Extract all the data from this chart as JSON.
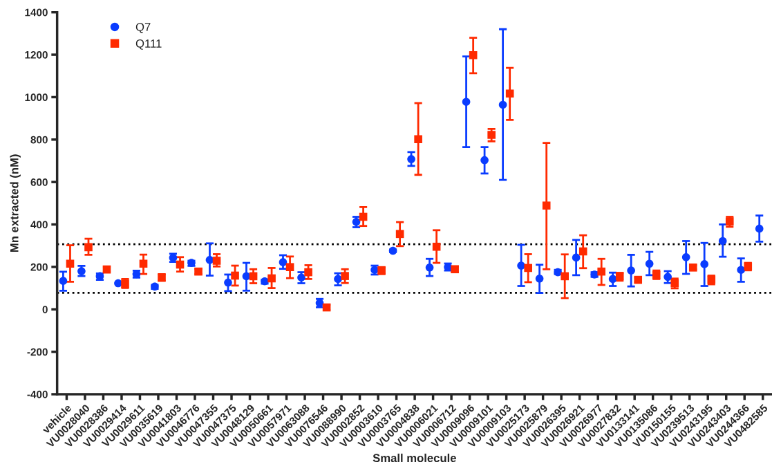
{
  "chart_data": {
    "type": "scatter",
    "xlabel": "Small molecule",
    "ylabel": "Mn extracted (nM)",
    "categories": [
      "vehicle",
      "VU0028040",
      "VU0028386",
      "VU0029414",
      "VU0029611",
      "VU0035619",
      "VU0041803",
      "VU0046776",
      "VU0047355",
      "VU0047375",
      "VU0048129",
      "VU0050661",
      "VU0057971",
      "VU0063088",
      "VU0076546",
      "VU0088990",
      "VU0002852",
      "VU0003610",
      "VU0003765",
      "VU0004838",
      "VU0006021",
      "VU0006712",
      "VU0009096",
      "VU0009101",
      "VU0009103",
      "VU0025173",
      "VU0025879",
      "VU0026395",
      "VU0026921",
      "VU0026977",
      "VU0027832",
      "VU0133141",
      "VU0135086",
      "VU0150155",
      "VU0239513",
      "VU0243195",
      "VU0243403",
      "VU0244366",
      "VU0482585"
    ],
    "series": [
      {
        "name": "Q7",
        "color": "#0a3cff",
        "marker": "circle",
        "values": [
          134,
          180,
          156,
          123,
          166,
          107,
          243,
          219,
          233,
          126,
          156,
          132,
          222,
          150,
          30,
          143,
          412,
          186,
          276,
          708,
          197,
          199,
          978,
          703,
          964,
          206,
          145,
          175,
          244,
          164,
          143,
          183,
          215,
          153,
          246,
          213,
          322,
          186,
          380
        ],
        "errors": [
          [
            88,
            177
          ],
          [
            157,
            205
          ],
          [
            139,
            169
          ],
          null,
          [
            150,
            182
          ],
          [
            97,
            115
          ],
          [
            224,
            262
          ],
          [
            205,
            229
          ],
          [
            159,
            311
          ],
          [
            86,
            164
          ],
          [
            88,
            219
          ],
          [
            121,
            140
          ],
          [
            191,
            255
          ],
          [
            123,
            175
          ],
          [
            10,
            49
          ],
          [
            113,
            170
          ],
          [
            387,
            436
          ],
          [
            164,
            206
          ],
          [
            270,
            282
          ],
          [
            676,
            741
          ],
          [
            157,
            238
          ],
          [
            183,
            216
          ],
          [
            765,
            1192
          ],
          [
            640,
            765
          ],
          [
            610,
            1320
          ],
          [
            110,
            304
          ],
          [
            77,
            210
          ],
          [
            166,
            186
          ],
          [
            161,
            327
          ],
          [
            153,
            175
          ],
          [
            110,
            173
          ],
          [
            108,
            257
          ],
          [
            161,
            271
          ],
          [
            124,
            180
          ],
          [
            167,
            322
          ],
          [
            110,
            313
          ],
          [
            248,
            400
          ],
          [
            130,
            240
          ],
          [
            319,
            442
          ]
        ]
      },
      {
        "name": "Q111",
        "color": "#ff2a00",
        "marker": "square",
        "values": [
          215,
          293,
          188,
          121,
          215,
          150,
          211,
          178,
          229,
          159,
          156,
          146,
          199,
          175,
          9,
          157,
          436,
          183,
          355,
          802,
          295,
          189,
          1198,
          822,
          1017,
          195,
          489,
          156,
          273,
          178,
          156,
          139,
          162,
          123,
          197,
          140,
          414,
          202,
          null
        ],
        "errors": [
          [
            130,
            302
          ],
          [
            257,
            333
          ],
          [
            177,
            199
          ],
          [
            101,
            143
          ],
          [
            167,
            258
          ],
          [
            134,
            166
          ],
          [
            178,
            246
          ],
          [
            166,
            191
          ],
          [
            202,
            260
          ],
          [
            112,
            206
          ],
          [
            123,
            189
          ],
          [
            100,
            195
          ],
          [
            147,
            249
          ],
          [
            143,
            208
          ],
          [
            -3,
            21
          ],
          [
            124,
            189
          ],
          [
            393,
            482
          ],
          [
            166,
            199
          ],
          [
            298,
            411
          ],
          [
            634,
            972
          ],
          [
            219,
            373
          ],
          [
            175,
            202
          ],
          [
            1113,
            1280
          ],
          [
            792,
            850
          ],
          [
            893,
            1138
          ],
          [
            128,
            260
          ],
          [
            189,
            784
          ],
          [
            53,
            259
          ],
          [
            194,
            349
          ],
          [
            115,
            238
          ],
          [
            135,
            172
          ],
          [
            128,
            150
          ],
          [
            143,
            183
          ],
          [
            99,
            145
          ],
          [
            188,
            208
          ],
          [
            118,
            159
          ],
          [
            389,
            436
          ],
          [
            184,
            219
          ],
          null
        ]
      }
    ],
    "ylim": [
      -400,
      1400
    ],
    "yticks": [
      -400,
      -200,
      0,
      200,
      400,
      600,
      800,
      1000,
      1200,
      1400
    ],
    "ref_lines": [
      {
        "axis": "y",
        "value": 307,
        "color": "#000000",
        "line_style": "dotted"
      },
      {
        "axis": "y",
        "value": 78,
        "color": "#000000",
        "line_style": "dotted"
      }
    ],
    "legend": "top left",
    "grid": false
  }
}
